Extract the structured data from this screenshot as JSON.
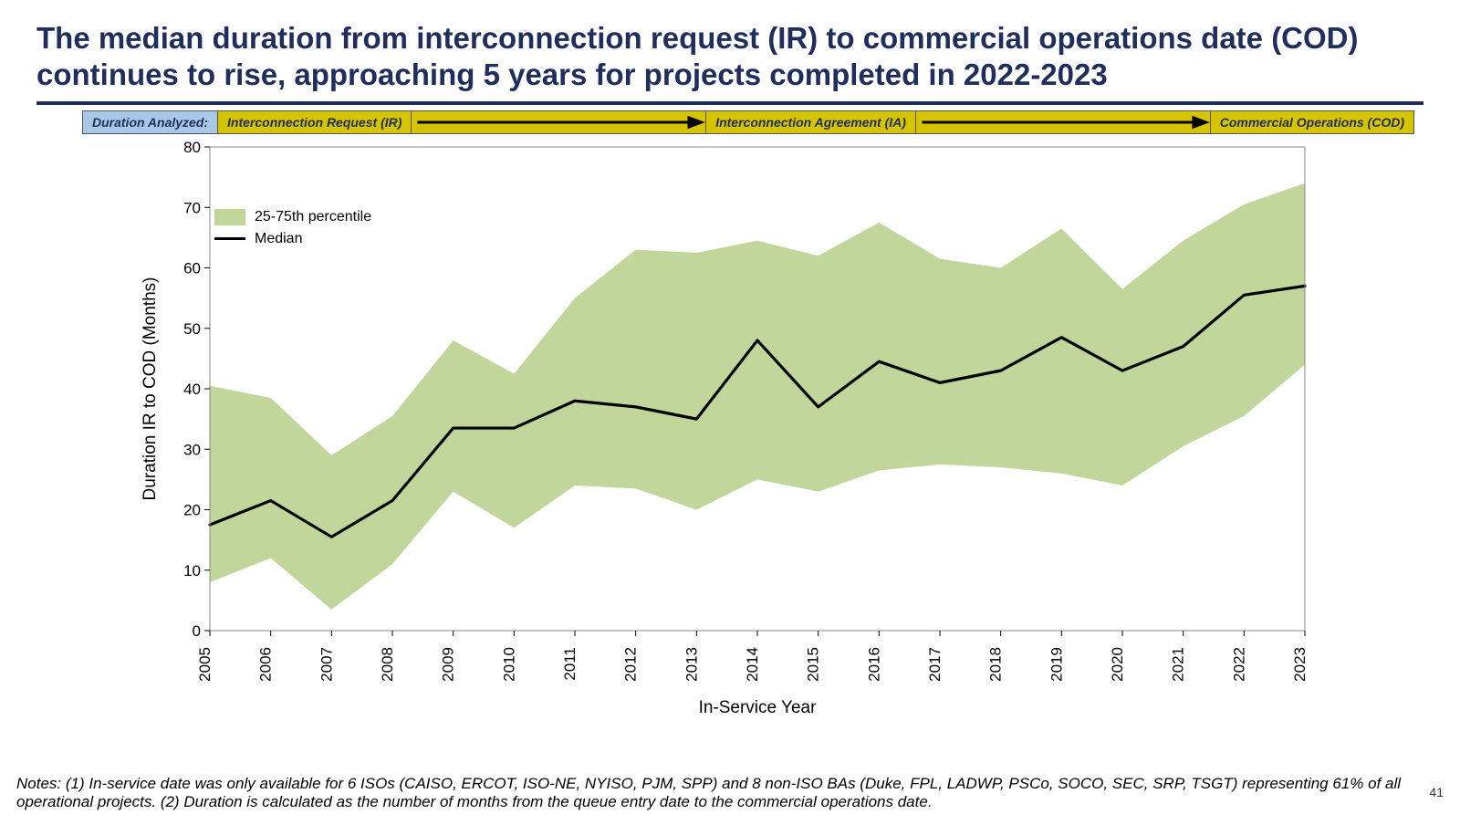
{
  "title": "The median duration from interconnection request (IR) to commercial operations date (COD) continues to rise, approaching 5 years for projects completed in 2022-2023",
  "flowbar": {
    "lead": "Duration Analyzed:",
    "stage1": "Interconnection Request (IR)",
    "stage2": "Interconnection Agreement (IA)",
    "stage3": "Commercial Operations (COD)"
  },
  "chart": {
    "type": "line_with_band",
    "x_label": "In-Service Year",
    "y_label": "Duration IR to COD (Months)",
    "years": [
      2005,
      2006,
      2007,
      2008,
      2009,
      2010,
      2011,
      2012,
      2013,
      2014,
      2015,
      2016,
      2017,
      2018,
      2019,
      2020,
      2021,
      2022,
      2023
    ],
    "median": [
      17.5,
      21.5,
      15.5,
      21.5,
      33.5,
      33.5,
      38,
      37,
      35,
      48,
      37,
      44.5,
      41,
      43,
      48.5,
      43,
      47,
      55.5,
      57
    ],
    "p25": [
      8,
      12,
      3.5,
      11,
      23,
      17,
      24,
      23.5,
      20,
      25,
      23,
      26.5,
      27.5,
      27,
      26,
      24,
      30.5,
      35.5,
      44
    ],
    "p75": [
      40.5,
      38.5,
      29,
      35.5,
      48,
      42.5,
      55,
      63,
      62.5,
      64.5,
      62,
      67.5,
      61.5,
      60,
      66.5,
      56.5,
      64.5,
      70.5,
      74
    ],
    "ylim": [
      0,
      80
    ],
    "ytick_step": 10,
    "band_color": "#c0d69a",
    "band_opacity": 1.0,
    "line_color": "#000000",
    "line_width": 3.2,
    "axis_color": "#000000",
    "tick_font_size": 17,
    "label_font_size": 19,
    "background_color": "#ffffff",
    "plot_border_color": "#888888",
    "legend": {
      "band_label": "25-75th percentile",
      "line_label": "Median"
    }
  },
  "notes": "Notes: (1) In-service date was only available for 6 ISOs (CAISO, ERCOT, ISO-NE, NYISO, PJM, SPP) and 8 non-ISO BAs (Duke, FPL, LADWP, PSCo, SOCO, SEC, SRP, TSGT) representing 61% of all operational projects. (2) Duration is calculated as the number of months from the queue entry date to the commercial operations date.",
  "page_number": "41"
}
